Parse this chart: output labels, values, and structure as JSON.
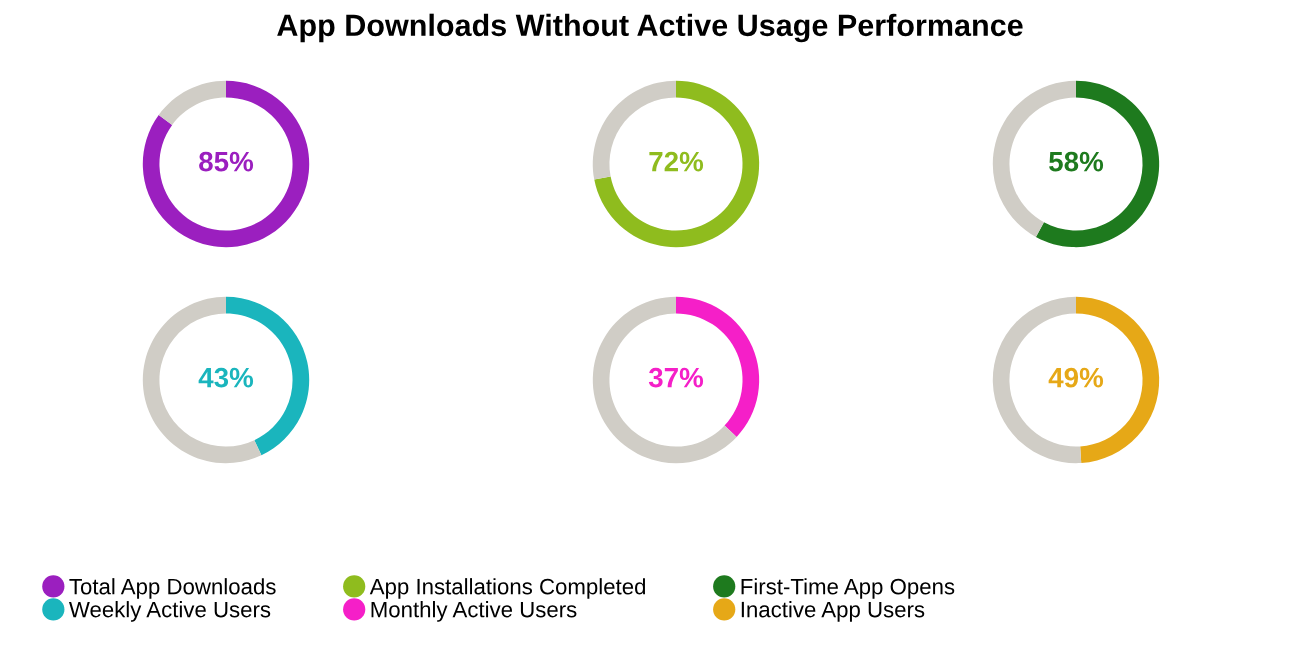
{
  "chart_data": [
    {
      "type": "donut",
      "categories": [
        "Total App Downloads",
        null
      ],
      "values": [
        85,
        15
      ],
      "colors": [
        "#9b1fbf",
        "#d0cdc6"
      ],
      "value_labels": [
        "85%",
        null
      ],
      "legend": "bottom"
    },
    {
      "type": "donut",
      "title": "App Downloads Without Active Usage Performance",
      "categories": [
        "App Installations Completed",
        null
      ],
      "values": [
        72,
        28
      ],
      "colors": [
        "#8fbc1e",
        "#d0cdc6"
      ],
      "value_labels": [
        "72%",
        null
      ],
      "legend": "bottom"
    },
    {
      "type": "donut",
      "categories": [
        "First-Time App Opens",
        null
      ],
      "values": [
        58,
        42
      ],
      "colors": [
        "#1e7a1e",
        "#d0cdc6"
      ],
      "value_labels": [
        "58%",
        null
      ],
      "legend": "bottom"
    },
    {
      "type": "donut",
      "categories": [
        "Weekly Active Users",
        null
      ],
      "values": [
        43,
        57
      ],
      "colors": [
        "#1ab5bd",
        "#d0cdc6"
      ],
      "value_labels": [
        "43%",
        null
      ],
      "legend": "bottom"
    },
    {
      "type": "donut",
      "categories": [
        "Monthly Active Users",
        null
      ],
      "values": [
        37,
        63
      ],
      "colors": [
        "#f51fc8",
        "#d0cdc6"
      ],
      "value_labels": [
        "37%",
        null
      ],
      "legend": "bottom"
    },
    {
      "type": "donut",
      "categories": [
        "Inactive App Users",
        null
      ],
      "values": [
        49,
        51
      ],
      "colors": [
        "#e6a817",
        "#d0cdc6"
      ],
      "value_labels": [
        "49%",
        null
      ],
      "legend": "bottom"
    }
  ]
}
